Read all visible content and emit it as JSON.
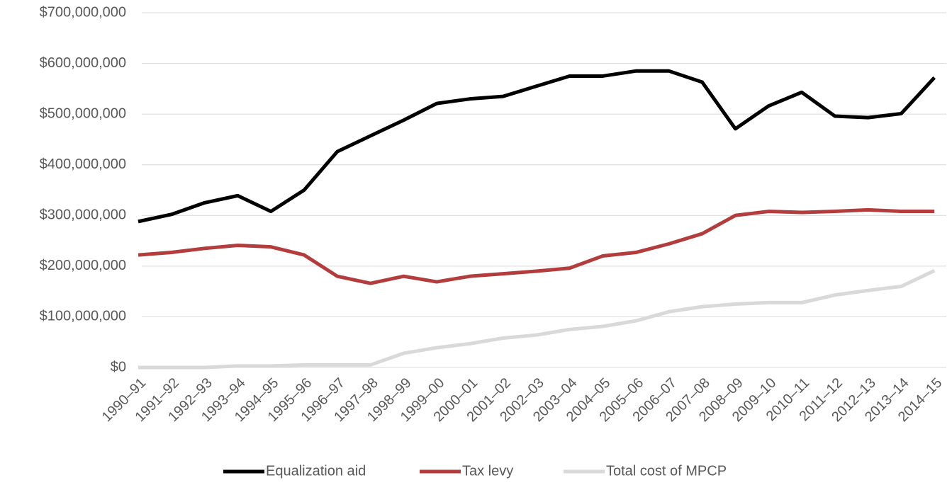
{
  "chart_data": {
    "type": "line",
    "categories": [
      "1990–91",
      "1991–92",
      "1992–93",
      "1993–94",
      "1994–95",
      "1995–96",
      "1996–97",
      "1997–98",
      "1998–99",
      "1999–00",
      "2000–01",
      "2001–02",
      "2002–03",
      "2003–04",
      "2004–05",
      "2005–06",
      "2006–07",
      "2007–08",
      "2008–09",
      "2009–10",
      "2010–11",
      "2011–12",
      "2012–13",
      "2013–14",
      "2014–15"
    ],
    "series": [
      {
        "name": "Equalization aid",
        "color": "#000000",
        "values": [
          288000000,
          302000000,
          325000000,
          339000000,
          308000000,
          350000000,
          426000000,
          457000000,
          488000000,
          521000000,
          530000000,
          535000000,
          555000000,
          575000000,
          575000000,
          585000000,
          585000000,
          563000000,
          471000000,
          516000000,
          543000000,
          496000000,
          493000000,
          501000000,
          572000000
        ]
      },
      {
        "name": "Tax levy",
        "color": "#b33c3c",
        "values": [
          222000000,
          227000000,
          235000000,
          241000000,
          238000000,
          222000000,
          180000000,
          166000000,
          180000000,
          169000000,
          180000000,
          185000000,
          190000000,
          196000000,
          220000000,
          227000000,
          244000000,
          264000000,
          300000000,
          308000000,
          306000000,
          308000000,
          311000000,
          308000000,
          308000000
        ]
      },
      {
        "name": "Total cost of MPCP",
        "color": "#d9d9d9",
        "values": [
          0,
          0,
          0,
          3000000,
          3000000,
          5000000,
          5000000,
          5000000,
          28000000,
          39000000,
          47000000,
          58000000,
          64000000,
          75000000,
          81000000,
          92000000,
          110000000,
          120000000,
          125000000,
          128000000,
          128000000,
          143000000,
          152000000,
          160000000,
          191000000
        ]
      }
    ],
    "ylim": [
      0,
      700000000
    ],
    "yticks": [
      {
        "value": 0,
        "label": "$0"
      },
      {
        "value": 100000000,
        "label": "$100,000,000"
      },
      {
        "value": 200000000,
        "label": "$200,000,000"
      },
      {
        "value": 300000000,
        "label": "$300,000,000"
      },
      {
        "value": 400000000,
        "label": "$400,000,000"
      },
      {
        "value": 500000000,
        "label": "$500,000,000"
      },
      {
        "value": 600000000,
        "label": "$600,000,000"
      },
      {
        "value": 700000000,
        "label": "$700,000,000"
      }
    ],
    "grid": true,
    "legend": "bottom"
  }
}
